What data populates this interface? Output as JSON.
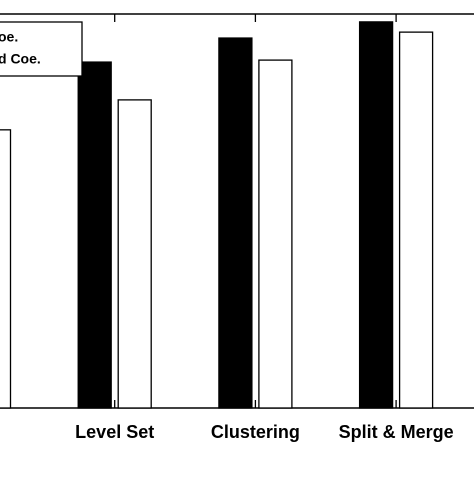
{
  "chart_data": {
    "type": "bar",
    "categories": [
      null,
      "Level Set",
      "Clustering",
      "Split & Merge"
    ],
    "series": [
      {
        "name": "oe.",
        "color": "#000000",
        "values": [
          null,
          0.878,
          0.939,
          0.98
        ]
      },
      {
        "name": "d Coe.",
        "color": "#ffffff",
        "values": [
          0.706,
          0.782,
          0.883,
          0.954
        ]
      }
    ],
    "ylim": [
      0,
      1
    ],
    "legend": "upper left"
  }
}
